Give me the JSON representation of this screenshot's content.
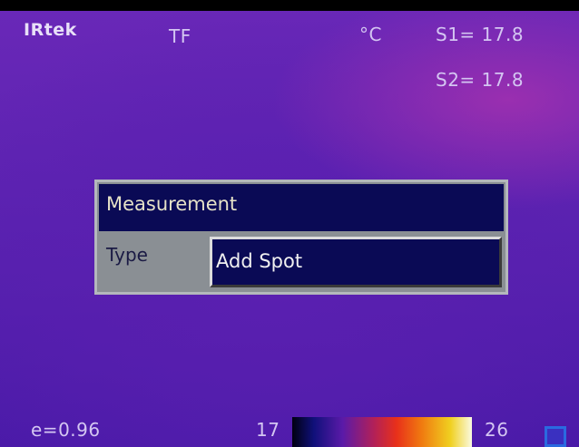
{
  "header": {
    "brand": "IRtek",
    "mode": "TF",
    "unit": "°C",
    "spots": [
      "S1= 17.8",
      "S2= 17.8"
    ]
  },
  "dialog": {
    "title": "Measurement",
    "label": "Type",
    "value": "Add Spot"
  },
  "footer": {
    "emissivity": "e=0.96",
    "scale_min": "17",
    "scale_max": "26"
  }
}
